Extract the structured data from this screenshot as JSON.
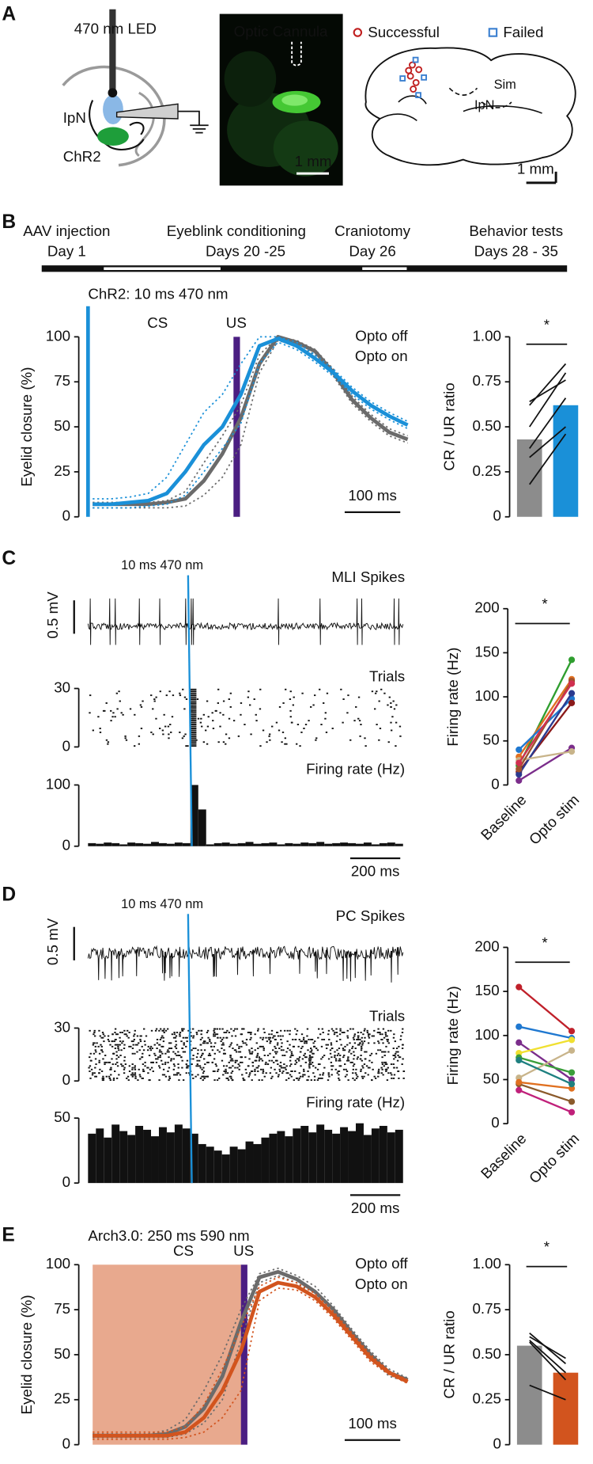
{
  "panels": {
    "A": {
      "label": "A",
      "led": "470 nm LED",
      "ipn": "IpN",
      "chr2": "ChR2",
      "cannula": "Optic Cannula",
      "scale": "1 mm",
      "successful": "Successful",
      "failed": "Failed",
      "sim": "Sim",
      "ipn_atlas": "IpN",
      "scale_atlas": "1 mm"
    },
    "B": {
      "label": "B",
      "timeline": [
        {
          "event": "AAV injection",
          "day": "Day 1"
        },
        {
          "event": "Eyeblink conditioning",
          "day": "Days 20 -25"
        },
        {
          "event": "Craniotomy",
          "day": "Day 26"
        },
        {
          "event": "Behavior tests",
          "day": "Days 28 - 35"
        }
      ]
    },
    "C": {
      "label": "C"
    },
    "D": {
      "label": "D"
    },
    "E": {
      "label": "E"
    }
  },
  "chart_data": [
    {
      "type": "line",
      "stimulus": "ChR2: 10 ms 470 nm",
      "cs": "CS",
      "us": "US",
      "ylabel": "Eyelid closure (%)",
      "ylim": [
        0,
        100
      ],
      "yticks": [
        0,
        25,
        50,
        75,
        100
      ],
      "scale_bar": "100 ms",
      "series": [
        {
          "name": "Opto off",
          "color": "#6b6b6b",
          "values": [
            7,
            7,
            7,
            7,
            8,
            10,
            20,
            35,
            55,
            85,
            100,
            97,
            92,
            80,
            65,
            55,
            47,
            43
          ],
          "upper": [
            8,
            8,
            8,
            8,
            9,
            14,
            30,
            45,
            62,
            90,
            100,
            98,
            93,
            82,
            67,
            57,
            49,
            45
          ],
          "lower": [
            5,
            5,
            5,
            5,
            5,
            6,
            12,
            22,
            40,
            80,
            98,
            95,
            90,
            78,
            63,
            53,
            45,
            41
          ]
        },
        {
          "name": "Opto on",
          "color": "#1a90d8",
          "values": [
            7,
            7,
            8,
            9,
            13,
            25,
            40,
            50,
            68,
            95,
            99,
            95,
            88,
            80,
            70,
            62,
            56,
            51
          ],
          "upper": [
            10,
            10,
            11,
            13,
            22,
            40,
            58,
            68,
            85,
            100,
            100,
            97,
            90,
            82,
            72,
            64,
            58,
            53
          ],
          "lower": [
            5,
            5,
            5,
            6,
            7,
            12,
            25,
            38,
            52,
            85,
            97,
            93,
            86,
            78,
            68,
            60,
            54,
            49
          ]
        }
      ]
    },
    {
      "type": "pairbar",
      "ylabel": "CR / UR ratio",
      "ylim": [
        0,
        1
      ],
      "yticks": [
        0,
        0.25,
        {
          "value": 0.5,
          "label": "0.50"
        },
        0.75,
        {
          "value": 1,
          "label": "1.00"
        }
      ],
      "values": [
        0.43,
        0.62
      ],
      "colors": [
        "#8c8c8c",
        "#1a90d8"
      ],
      "pairs": [
        [
          0.33,
          0.5
        ],
        [
          0.18,
          0.46
        ],
        [
          0.38,
          0.66
        ],
        [
          0.5,
          0.8
        ],
        [
          0.62,
          0.85
        ],
        [
          0.64,
          0.76
        ]
      ],
      "annotation": "*"
    },
    {
      "type": "spike",
      "stimulus": "10 ms 470 nm",
      "title": "MLI Spikes",
      "scale": "0.5 mV",
      "raster_label": "Trials",
      "raster_ylim": [
        0,
        30
      ],
      "raster_yticks": [
        0,
        30
      ],
      "hist_label": "Firing rate (Hz)",
      "ylim": [
        0,
        100
      ],
      "yticks": [
        0,
        100
      ],
      "scale_bar": "200 ms",
      "values": [
        5,
        4,
        6,
        5,
        3,
        6,
        5,
        4,
        7,
        5,
        4,
        6,
        5,
        100,
        60,
        3,
        5,
        6,
        4,
        5,
        7,
        4,
        5,
        6,
        3,
        5,
        4,
        6,
        5,
        7,
        4,
        5,
        6,
        5,
        4,
        6,
        3,
        5,
        6,
        4
      ]
    },
    {
      "type": "pairline",
      "ylabel": "Firing rate (Hz)",
      "categories": [
        "Baseline",
        "Opto stim"
      ],
      "ylim": [
        0,
        200
      ],
      "yticks": [
        0,
        50,
        100,
        150,
        200
      ],
      "annotation": "*",
      "series": [
        {
          "color": "#2f9e2f",
          "values": [
            22,
            142
          ]
        },
        {
          "color": "#e07020",
          "values": [
            32,
            120
          ]
        },
        {
          "color": "#1f78d0",
          "values": [
            40,
            98
          ]
        },
        {
          "color": "#8b1a1a",
          "values": [
            15,
            93
          ]
        },
        {
          "color": "#7b2d8b",
          "values": [
            5,
            42
          ]
        },
        {
          "color": "#2b3a8f",
          "values": [
            12,
            104
          ]
        },
        {
          "color": "#c8b48a",
          "values": [
            28,
            38
          ]
        },
        {
          "color": "#a0522d",
          "values": [
            18,
            118
          ]
        },
        {
          "color": "#d03050",
          "values": [
            25,
            115
          ]
        }
      ]
    },
    {
      "type": "spike",
      "stimulus": "10 ms 470 nm",
      "title": "PC Spikes",
      "scale": "0.5 mV",
      "raster_label": "Trials",
      "raster_ylim": [
        0,
        30
      ],
      "raster_yticks": [
        0,
        30
      ],
      "hist_label": "Firing rate (Hz)",
      "ylim": [
        0,
        50
      ],
      "yticks": [
        0,
        50
      ],
      "scale_bar": "200 ms",
      "values": [
        38,
        42,
        35,
        45,
        40,
        37,
        44,
        41,
        36,
        43,
        39,
        45,
        42,
        38,
        30,
        28,
        25,
        22,
        28,
        26,
        32,
        30,
        35,
        38,
        40,
        36,
        42,
        44,
        39,
        45,
        41,
        38,
        43,
        40,
        46,
        37,
        42,
        44,
        39,
        41
      ]
    },
    {
      "type": "pairline",
      "ylabel": "Firing rate (Hz)",
      "categories": [
        "Baseline",
        "Opto stim"
      ],
      "ylim": [
        0,
        200
      ],
      "yticks": [
        0,
        50,
        100,
        150,
        200
      ],
      "annotation": "*",
      "series": [
        {
          "color": "#c0202a",
          "values": [
            155,
            105
          ]
        },
        {
          "color": "#1f78d0",
          "values": [
            110,
            97
          ]
        },
        {
          "color": "#7b2d8b",
          "values": [
            92,
            50
          ]
        },
        {
          "color": "#f0e030",
          "values": [
            80,
            95
          ]
        },
        {
          "color": "#3a9e3a",
          "values": [
            75,
            58
          ]
        },
        {
          "color": "#c8b48a",
          "values": [
            52,
            83
          ]
        },
        {
          "color": "#8b5a2b",
          "values": [
            45,
            25
          ]
        },
        {
          "color": "#e07020",
          "values": [
            47,
            40
          ]
        },
        {
          "color": "#c0207a",
          "values": [
            38,
            13
          ]
        },
        {
          "color": "#1e8080",
          "values": [
            72,
            45
          ]
        }
      ]
    },
    {
      "type": "line",
      "stimulus": "Arch3.0: 250 ms 590 nm",
      "cs": "CS",
      "us": "US",
      "ylabel": "Eyelid closure (%)",
      "ylim": [
        0,
        100
      ],
      "yticks": [
        0,
        25,
        50,
        75,
        100
      ],
      "scale_bar": "100 ms",
      "series": [
        {
          "name": "Opto off",
          "color": "#6b6b6b",
          "values": [
            5,
            5,
            5,
            5,
            6,
            10,
            20,
            38,
            68,
            93,
            96,
            92,
            85,
            75,
            62,
            50,
            40,
            36
          ],
          "upper": [
            6,
            6,
            6,
            6,
            8,
            14,
            30,
            50,
            75,
            95,
            98,
            94,
            88,
            77,
            64,
            52,
            42,
            37
          ],
          "lower": [
            4,
            4,
            4,
            4,
            4,
            6,
            12,
            25,
            58,
            90,
            94,
            90,
            82,
            73,
            60,
            48,
            38,
            35
          ]
        },
        {
          "name": "Opto on",
          "color": "#d2541e",
          "values": [
            5,
            5,
            5,
            5,
            5,
            7,
            15,
            30,
            52,
            85,
            90,
            88,
            82,
            72,
            60,
            48,
            40,
            35
          ],
          "upper": [
            7,
            7,
            7,
            7,
            7,
            10,
            22,
            42,
            65,
            88,
            93,
            90,
            84,
            74,
            62,
            50,
            41,
            36
          ],
          "lower": [
            3,
            3,
            3,
            3,
            3,
            4,
            7,
            15,
            30,
            80,
            87,
            86,
            80,
            70,
            58,
            46,
            39,
            34
          ]
        }
      ]
    },
    {
      "type": "pairbar",
      "ylabel": "CR / UR ratio",
      "ylim": [
        0,
        1
      ],
      "yticks": [
        0,
        0.25,
        {
          "value": 0.5,
          "label": "0.50"
        },
        0.75,
        {
          "value": 1,
          "label": "1.00"
        }
      ],
      "values": [
        0.55,
        0.4
      ],
      "colors": [
        "#8c8c8c",
        "#d2541e"
      ],
      "pairs": [
        [
          0.6,
          0.48
        ],
        [
          0.58,
          0.4
        ],
        [
          0.57,
          0.36
        ],
        [
          0.62,
          0.45
        ],
        [
          0.33,
          0.25
        ]
      ],
      "annotation": "*"
    }
  ]
}
